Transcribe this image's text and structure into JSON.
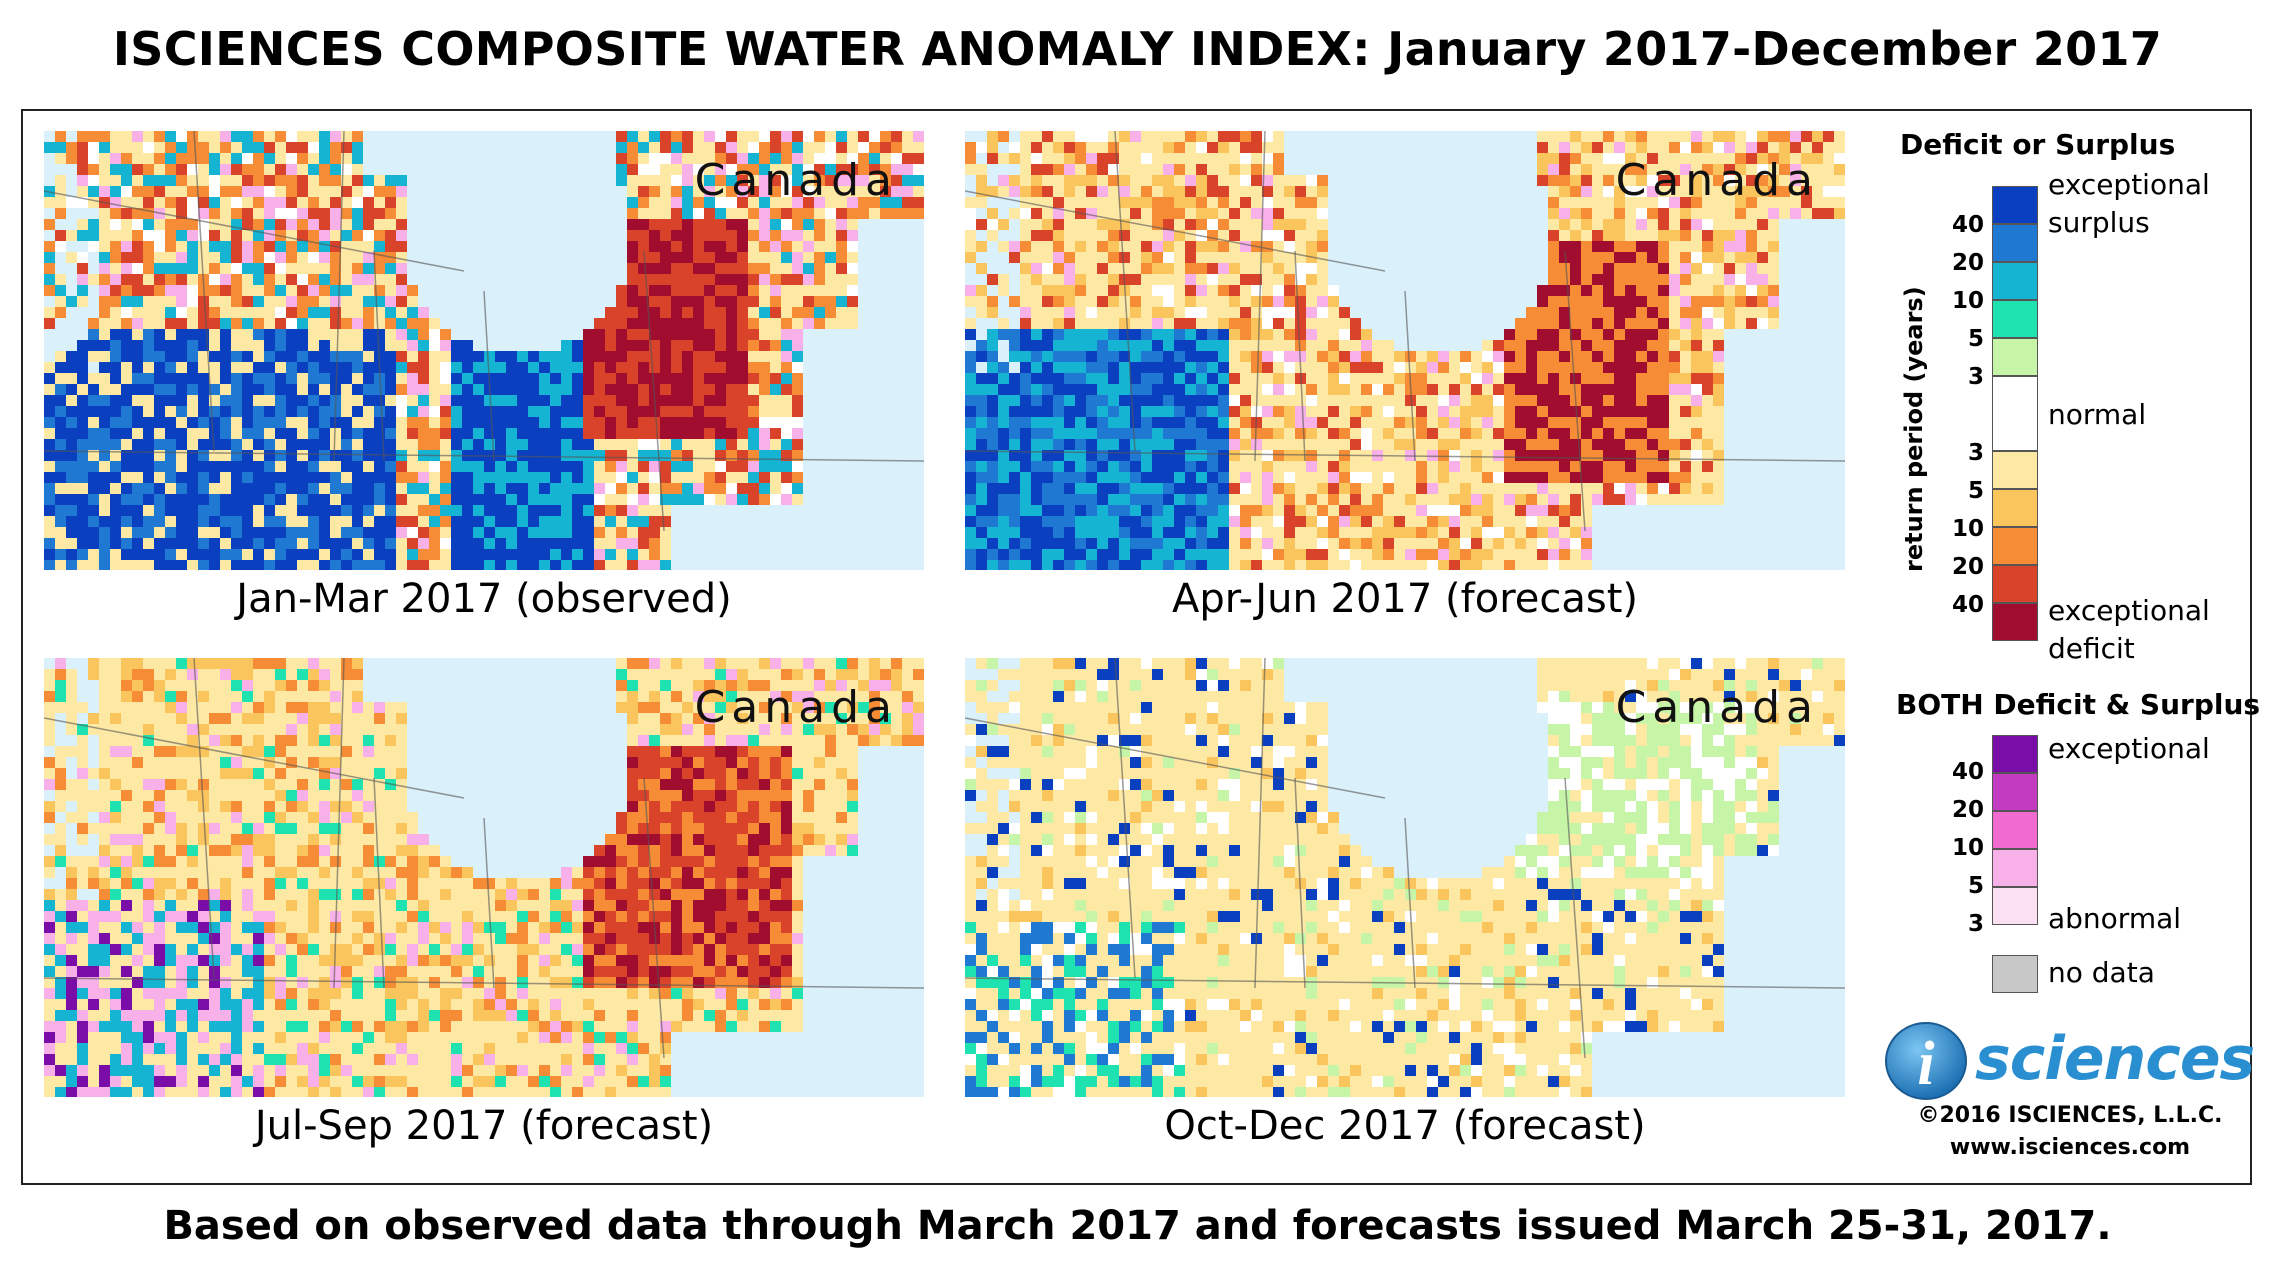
{
  "title": "ISCIENCES COMPOSITE WATER ANOMALY INDEX: January 2017-December 2017",
  "maps": [
    {
      "region": "Canada",
      "caption": "Jan-Mar 2017 (observed)",
      "scheme": "surplus-dominant"
    },
    {
      "region": "Canada",
      "caption": "Apr-Jun 2017 (forecast)",
      "scheme": "mixed"
    },
    {
      "region": "Canada",
      "caption": "Jul-Sep 2017 (forecast)",
      "scheme": "deficit-dominant"
    },
    {
      "region": "Canada",
      "caption": "Oct-Dec 2017 (forecast)",
      "scheme": "mild"
    }
  ],
  "legend": {
    "deficit_surplus": {
      "title": "Deficit or Surplus",
      "axis_label": "return period (years)",
      "surplus_colors": [
        "#0a3fbf",
        "#1f78d1",
        "#14b4d2",
        "#1ee3b0",
        "#c7f5a8"
      ],
      "surplus_ticks": [
        "40",
        "20",
        "10",
        "5",
        "3"
      ],
      "normal_color": "#ffffff",
      "deficit_colors": [
        "#fde8a4",
        "#fbc55e",
        "#f68c35",
        "#d9432a",
        "#a10d2e"
      ],
      "deficit_ticks": [
        "3",
        "5",
        "10",
        "20",
        "40"
      ],
      "labels": {
        "surplus_top": "exceptional",
        "surplus_bottom": "surplus",
        "normal": "normal",
        "deficit_top": "exceptional",
        "deficit_bottom": "deficit"
      }
    },
    "both": {
      "title": "BOTH Deficit & Surplus",
      "colors": [
        "#7a0ca8",
        "#c23bc0",
        "#f06ad0",
        "#f7b0e8",
        "#fbe0f4"
      ],
      "ticks": [
        "40",
        "20",
        "10",
        "5",
        "3"
      ],
      "labels": {
        "top": "exceptional",
        "bottom": "abnormal"
      }
    },
    "no_data": {
      "label": "no data",
      "color": "#c8c8c8"
    }
  },
  "logo": {
    "letter": "i",
    "text": "sciences"
  },
  "copyright": "©2016 ISCIENCES, L.L.C.",
  "website": "www.isciences.com",
  "footer": "Based on observed data through March 2017 and forecasts issued March 25-31, 2017."
}
